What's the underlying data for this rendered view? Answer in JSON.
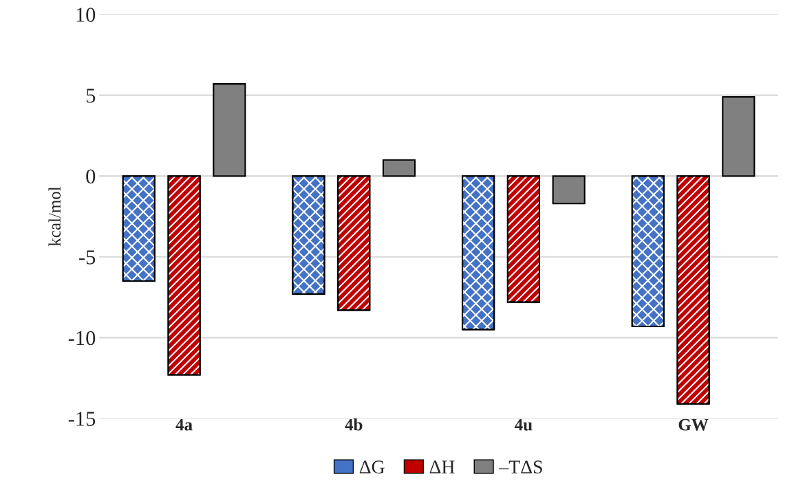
{
  "chart_data": {
    "type": "bar",
    "ylabel": "kcal/mol",
    "categories": [
      "4a",
      "4b",
      "4u",
      "GW"
    ],
    "series": [
      {
        "name": "ΔG",
        "color": "#4472c4",
        "values": [
          -6.5,
          -7.3,
          -9.5,
          -9.3
        ]
      },
      {
        "name": "ΔH",
        "color": "#c00000",
        "values": [
          -12.3,
          -8.3,
          -7.8,
          -14.1
        ]
      },
      {
        "name": "–TΔS",
        "color": "#808080",
        "values": [
          5.7,
          1.0,
          -1.7,
          4.9
        ]
      }
    ],
    "ylim": [
      -15,
      10
    ],
    "yticks": [
      -15,
      -10,
      -5,
      0,
      5,
      10
    ],
    "grid": "y",
    "legend": "bottom"
  }
}
